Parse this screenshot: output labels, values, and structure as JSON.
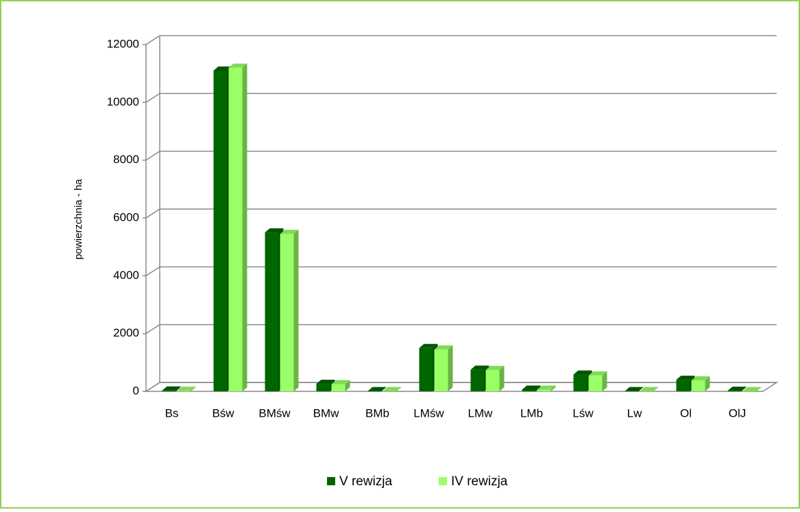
{
  "chart_data": {
    "type": "bar3d",
    "y_label": "powierzchnia - ha",
    "categories": [
      "Bs",
      "Bśw",
      "BMśw",
      "BMw",
      "BMb",
      "LMśw",
      "LMw",
      "LMb",
      "Lśw",
      "Lw",
      "Ol",
      "OlJ"
    ],
    "series": [
      {
        "name": "V rewizja",
        "color": "#006600",
        "values": [
          30,
          11100,
          5500,
          260,
          10,
          1500,
          750,
          60,
          580,
          10,
          400,
          20
        ]
      },
      {
        "name": "IV rewizja",
        "color": "#99ff66",
        "values": [
          20,
          11200,
          5450,
          250,
          10,
          1450,
          740,
          60,
          550,
          10,
          380,
          10
        ]
      }
    ],
    "ylim": [
      0,
      12000
    ],
    "yticks": [
      0,
      2000,
      4000,
      6000,
      8000,
      10000,
      12000
    ],
    "grid": true
  }
}
